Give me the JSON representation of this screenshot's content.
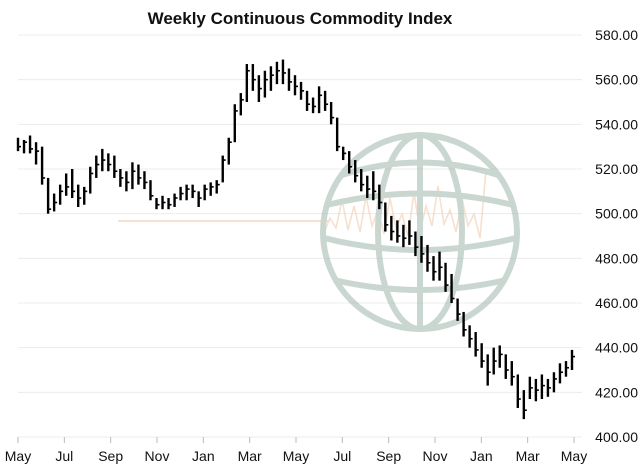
{
  "chart_data": {
    "type": "ohlc",
    "title": "Weekly Continuous Commodity Index",
    "xlabel": "",
    "ylabel": "",
    "ylim": [
      400,
      580
    ],
    "y_ticks": [
      "580.00",
      "560.00",
      "540.00",
      "520.00",
      "500.00",
      "480.00",
      "460.00",
      "440.00",
      "420.00",
      "400.00"
    ],
    "y_axis_position": "right",
    "x_ticks": [
      "May",
      "Jul",
      "Sep",
      "Nov",
      "Jan",
      "Mar",
      "May",
      "Jul",
      "Sep",
      "Nov",
      "Jan",
      "Mar",
      "May"
    ],
    "grid": "horizontal",
    "bars": [
      {
        "h": 534,
        "l": 528,
        "c": 530
      },
      {
        "h": 533,
        "l": 527,
        "c": 532
      },
      {
        "h": 535,
        "l": 527,
        "c": 529
      },
      {
        "h": 532,
        "l": 522,
        "c": 528
      },
      {
        "h": 530,
        "l": 513,
        "c": 516
      },
      {
        "h": 516,
        "l": 500,
        "c": 502
      },
      {
        "h": 509,
        "l": 501,
        "c": 505
      },
      {
        "h": 513,
        "l": 504,
        "c": 510
      },
      {
        "h": 518,
        "l": 508,
        "c": 512
      },
      {
        "h": 520,
        "l": 507,
        "c": 510
      },
      {
        "h": 513,
        "l": 503,
        "c": 507
      },
      {
        "h": 512,
        "l": 504,
        "c": 510
      },
      {
        "h": 521,
        "l": 509,
        "c": 518
      },
      {
        "h": 526,
        "l": 516,
        "c": 522
      },
      {
        "h": 529,
        "l": 519,
        "c": 524
      },
      {
        "h": 527,
        "l": 519,
        "c": 522
      },
      {
        "h": 526,
        "l": 516,
        "c": 519
      },
      {
        "h": 520,
        "l": 512,
        "c": 516
      },
      {
        "h": 519,
        "l": 510,
        "c": 514
      },
      {
        "h": 523,
        "l": 511,
        "c": 519
      },
      {
        "h": 522,
        "l": 513,
        "c": 516
      },
      {
        "h": 519,
        "l": 511,
        "c": 514
      },
      {
        "h": 515,
        "l": 506,
        "c": 508
      },
      {
        "h": 507,
        "l": 502,
        "c": 504
      },
      {
        "h": 508,
        "l": 502,
        "c": 505
      },
      {
        "h": 507,
        "l": 502,
        "c": 504
      },
      {
        "h": 509,
        "l": 503,
        "c": 507
      },
      {
        "h": 512,
        "l": 506,
        "c": 509
      },
      {
        "h": 513,
        "l": 506,
        "c": 511
      },
      {
        "h": 513,
        "l": 507,
        "c": 510
      },
      {
        "h": 510,
        "l": 503,
        "c": 507
      },
      {
        "h": 513,
        "l": 506,
        "c": 511
      },
      {
        "h": 514,
        "l": 508,
        "c": 512
      },
      {
        "h": 515,
        "l": 509,
        "c": 513
      },
      {
        "h": 526,
        "l": 514,
        "c": 524
      },
      {
        "h": 534,
        "l": 522,
        "c": 532
      },
      {
        "h": 549,
        "l": 532,
        "c": 546
      },
      {
        "h": 554,
        "l": 544,
        "c": 551
      },
      {
        "h": 567,
        "l": 550,
        "c": 564
      },
      {
        "h": 567,
        "l": 555,
        "c": 560
      },
      {
        "h": 562,
        "l": 550,
        "c": 556
      },
      {
        "h": 564,
        "l": 552,
        "c": 560
      },
      {
        "h": 566,
        "l": 555,
        "c": 562
      },
      {
        "h": 568,
        "l": 558,
        "c": 564
      },
      {
        "h": 569,
        "l": 558,
        "c": 563
      },
      {
        "h": 565,
        "l": 555,
        "c": 559
      },
      {
        "h": 562,
        "l": 553,
        "c": 557
      },
      {
        "h": 559,
        "l": 551,
        "c": 555
      },
      {
        "h": 555,
        "l": 546,
        "c": 549
      },
      {
        "h": 552,
        "l": 545,
        "c": 548
      },
      {
        "h": 557,
        "l": 545,
        "c": 553
      },
      {
        "h": 555,
        "l": 546,
        "c": 549
      },
      {
        "h": 550,
        "l": 540,
        "c": 543
      },
      {
        "h": 543,
        "l": 528,
        "c": 530
      },
      {
        "h": 530,
        "l": 524,
        "c": 527
      },
      {
        "h": 528,
        "l": 518,
        "c": 521
      },
      {
        "h": 524,
        "l": 514,
        "c": 517
      },
      {
        "h": 520,
        "l": 510,
        "c": 513
      },
      {
        "h": 517,
        "l": 507,
        "c": 511
      },
      {
        "h": 519,
        "l": 506,
        "c": 510
      },
      {
        "h": 513,
        "l": 502,
        "c": 505
      },
      {
        "h": 505,
        "l": 492,
        "c": 495
      },
      {
        "h": 499,
        "l": 488,
        "c": 492
      },
      {
        "h": 497,
        "l": 487,
        "c": 490
      },
      {
        "h": 495,
        "l": 485,
        "c": 489
      },
      {
        "h": 497,
        "l": 486,
        "c": 490
      },
      {
        "h": 492,
        "l": 481,
        "c": 485
      },
      {
        "h": 490,
        "l": 478,
        "c": 482
      },
      {
        "h": 486,
        "l": 474,
        "c": 478
      },
      {
        "h": 481,
        "l": 470,
        "c": 474
      },
      {
        "h": 483,
        "l": 470,
        "c": 476
      },
      {
        "h": 478,
        "l": 465,
        "c": 468
      },
      {
        "h": 473,
        "l": 460,
        "c": 462
      },
      {
        "h": 462,
        "l": 452,
        "c": 455
      },
      {
        "h": 456,
        "l": 445,
        "c": 448
      },
      {
        "h": 450,
        "l": 440,
        "c": 444
      },
      {
        "h": 447,
        "l": 436,
        "c": 439
      },
      {
        "h": 442,
        "l": 431,
        "c": 434
      },
      {
        "h": 437,
        "l": 423,
        "c": 429
      },
      {
        "h": 440,
        "l": 428,
        "c": 434
      },
      {
        "h": 441,
        "l": 431,
        "c": 437
      },
      {
        "h": 437,
        "l": 426,
        "c": 430
      },
      {
        "h": 434,
        "l": 423,
        "c": 427
      },
      {
        "h": 428,
        "l": 413,
        "c": 417
      },
      {
        "h": 421,
        "l": 408,
        "c": 412
      },
      {
        "h": 427,
        "l": 417,
        "c": 422
      },
      {
        "h": 426,
        "l": 416,
        "c": 421
      },
      {
        "h": 428,
        "l": 417,
        "c": 423
      },
      {
        "h": 426,
        "l": 418,
        "c": 422
      },
      {
        "h": 429,
        "l": 420,
        "c": 426
      },
      {
        "h": 433,
        "l": 424,
        "c": 429
      },
      {
        "h": 434,
        "l": 427,
        "c": 431
      },
      {
        "h": 439,
        "l": 430,
        "c": 436
      }
    ]
  }
}
